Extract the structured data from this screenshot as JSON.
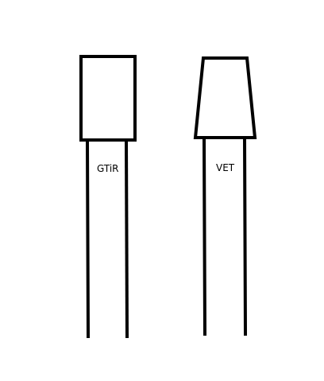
{
  "components": [
    {
      "id": "gtir",
      "label": "GTiR",
      "head": "rectangle"
    },
    {
      "id": "vet",
      "label": "VET",
      "head": "trapezoid"
    }
  ],
  "colors": {
    "stroke": "#000000",
    "background": "#ffffff",
    "text": "#000000"
  }
}
